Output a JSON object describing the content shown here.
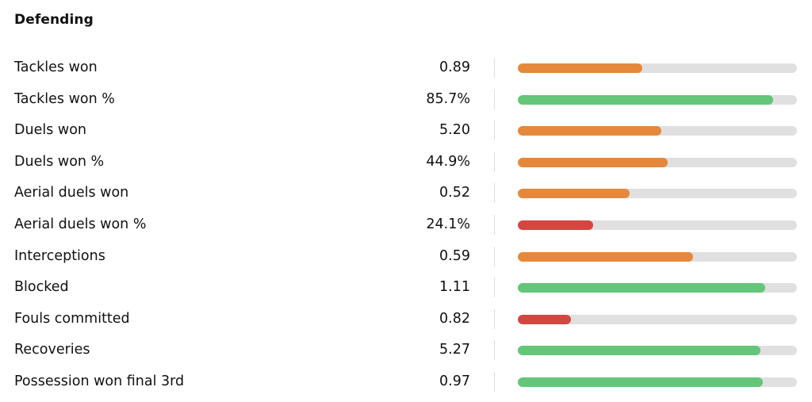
{
  "section": {
    "title": "Defending"
  },
  "colors": {
    "orange": "#e5883c",
    "green": "#63c678",
    "red": "#d4463f",
    "track": "#e0e0e0"
  },
  "stats": [
    {
      "label": "Tackles won",
      "value": "0.89",
      "level": 0.445,
      "color": "orange"
    },
    {
      "label": "Tackles won %",
      "value": "85.7%",
      "level": 0.915,
      "color": "green"
    },
    {
      "label": "Duels won",
      "value": "5.20",
      "level": 0.515,
      "color": "orange"
    },
    {
      "label": "Duels won %",
      "value": "44.9%",
      "level": 0.538,
      "color": "orange"
    },
    {
      "label": "Aerial duels won",
      "value": "0.52",
      "level": 0.4,
      "color": "orange"
    },
    {
      "label": "Aerial duels won %",
      "value": "24.1%",
      "level": 0.27,
      "color": "red"
    },
    {
      "label": "Interceptions",
      "value": "0.59",
      "level": 0.628,
      "color": "orange"
    },
    {
      "label": "Blocked",
      "value": "1.11",
      "level": 0.885,
      "color": "green"
    },
    {
      "label": "Fouls committed",
      "value": "0.82",
      "level": 0.19,
      "color": "red"
    },
    {
      "label": "Recoveries",
      "value": "5.27",
      "level": 0.87,
      "color": "green"
    },
    {
      "label": "Possession won final 3rd",
      "value": "0.97",
      "level": 0.877,
      "color": "green"
    }
  ]
}
